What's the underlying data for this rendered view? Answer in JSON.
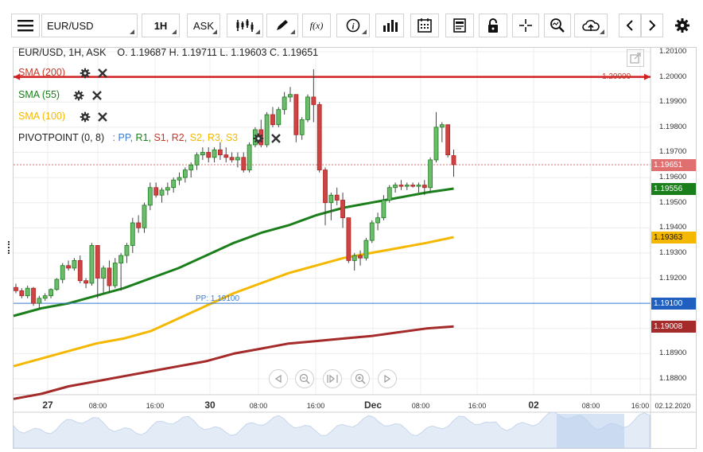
{
  "toolbar": {
    "menu_icon": "hamburger-icon",
    "symbol": "EUR/USD",
    "timeframe": "1H",
    "price_type": "ASK",
    "fx_label": "f(x)"
  },
  "header": {
    "title": "EUR/USD, 1H, ASK",
    "ohlc": "O. 1.19687 H. 1.19711 L. 1.19603 C. 1.19651"
  },
  "indicators": [
    {
      "label": "SMA (200)",
      "color": "#c0392b"
    },
    {
      "label": "SMA (55)",
      "color": "#1a7f1a"
    },
    {
      "label": "SMA (100)",
      "color": "#f5b800"
    }
  ],
  "pivot": {
    "label": "PIVOTPOINT (0, 8)",
    "sep": ":",
    "parts": [
      {
        "text": "PP,",
        "color": "#3a7bd5"
      },
      {
        "text": "R1,",
        "color": "#1a7f1a"
      },
      {
        "text": "S1,",
        "color": "#c0392b"
      },
      {
        "text": "R2,",
        "color": "#c0392b"
      },
      {
        "text": "S2,",
        "color": "#f5b800"
      },
      {
        "text": "R3,",
        "color": "#f5b800"
      },
      {
        "text": "S3",
        "color": "#f5b800"
      }
    ],
    "pp_label": "PP: 1.19100"
  },
  "price_axis": {
    "labels": [
      "1.20100",
      "1.20000",
      "1.19900",
      "1.19800",
      "1.19700",
      "1.19600",
      "1.19500",
      "1.19400",
      "1.19300",
      "1.19200",
      "1.19100",
      "1.19000",
      "1.18900",
      "1.18800"
    ],
    "hline_label": "1.20000"
  },
  "tags": [
    {
      "text": "1.19651",
      "color": "#e07070"
    },
    {
      "text": "1.19556",
      "color": "#1a7f1a"
    },
    {
      "text": "1.19363",
      "color": "#f5b800",
      "text_color": "#111"
    },
    {
      "text": "1.19100",
      "color": "#1f5fbf"
    },
    {
      "text": "1.19008",
      "color": "#a52a2a"
    }
  ],
  "time_axis": {
    "labels": [
      {
        "t": "27",
        "bold": true
      },
      {
        "t": "08:00"
      },
      {
        "t": "16:00"
      },
      {
        "t": "30",
        "bold": true
      },
      {
        "t": "08:00"
      },
      {
        "t": "16:00"
      },
      {
        "t": "Dec",
        "bold": true
      },
      {
        "t": "08:00"
      },
      {
        "t": "16:00"
      },
      {
        "t": "02",
        "bold": true
      },
      {
        "t": "08:00"
      },
      {
        "t": "16:00"
      },
      {
        "t": "02.12.2020"
      }
    ]
  },
  "chart_data": {
    "type": "candlestick",
    "symbol": "EUR/USD",
    "interval": "1H",
    "ylim": [
      1.1875,
      1.2013
    ],
    "candles": [
      [
        1.19163,
        1.19178,
        1.1914,
        1.1915
      ],
      [
        1.1915,
        1.1916,
        1.1912,
        1.1913
      ],
      [
        1.1913,
        1.1917,
        1.1912,
        1.1916
      ],
      [
        1.1916,
        1.19165,
        1.1909,
        1.191
      ],
      [
        1.191,
        1.1913,
        1.1908,
        1.1912
      ],
      [
        1.1912,
        1.1914,
        1.1911,
        1.1913
      ],
      [
        1.1913,
        1.1916,
        1.1912,
        1.19155
      ],
      [
        1.19155,
        1.192,
        1.1915,
        1.19195
      ],
      [
        1.19195,
        1.1926,
        1.1918,
        1.1925
      ],
      [
        1.1925,
        1.1927,
        1.1923,
        1.1924
      ],
      [
        1.1924,
        1.1928,
        1.1923,
        1.1927
      ],
      [
        1.1927,
        1.1929,
        1.1918,
        1.1919
      ],
      [
        1.1919,
        1.192,
        1.1916,
        1.1918
      ],
      [
        1.1918,
        1.1934,
        1.1917,
        1.1933
      ],
      [
        1.1933,
        1.1932,
        1.1912,
        1.192
      ],
      [
        1.192,
        1.1925,
        1.1914,
        1.1924
      ],
      [
        1.1924,
        1.1927,
        1.1914,
        1.1917
      ],
      [
        1.1917,
        1.1928,
        1.1916,
        1.1926
      ],
      [
        1.1926,
        1.193,
        1.1915,
        1.1929
      ],
      [
        1.1929,
        1.1934,
        1.1926,
        1.1933
      ],
      [
        1.1933,
        1.1944,
        1.193,
        1.1942
      ],
      [
        1.1942,
        1.1945,
        1.1938,
        1.194
      ],
      [
        1.194,
        1.195,
        1.1938,
        1.1949
      ],
      [
        1.1949,
        1.1958,
        1.1947,
        1.1956
      ],
      [
        1.1956,
        1.1958,
        1.1952,
        1.1953
      ],
      [
        1.1953,
        1.1956,
        1.195,
        1.1955
      ],
      [
        1.1955,
        1.1958,
        1.1953,
        1.1956
      ],
      [
        1.1956,
        1.196,
        1.1954,
        1.1959
      ],
      [
        1.1959,
        1.1962,
        1.1957,
        1.196
      ],
      [
        1.196,
        1.1964,
        1.1958,
        1.1963
      ],
      [
        1.1963,
        1.1966,
        1.196,
        1.1965
      ],
      [
        1.1965,
        1.197,
        1.1963,
        1.1969
      ],
      [
        1.1969,
        1.1972,
        1.1967,
        1.197
      ],
      [
        1.197,
        1.1972,
        1.1966,
        1.1968
      ],
      [
        1.1968,
        1.1972,
        1.1966,
        1.1971
      ],
      [
        1.1971,
        1.1974,
        1.1967,
        1.1969
      ],
      [
        1.1969,
        1.1972,
        1.1966,
        1.1968
      ],
      [
        1.1968,
        1.197,
        1.1966,
        1.1967
      ],
      [
        1.1967,
        1.197,
        1.1964,
        1.1968
      ],
      [
        1.1968,
        1.197,
        1.1962,
        1.1963
      ],
      [
        1.1963,
        1.1974,
        1.1962,
        1.1973
      ],
      [
        1.1973,
        1.198,
        1.1972,
        1.1979
      ],
      [
        1.1979,
        1.1983,
        1.1972,
        1.1973
      ],
      [
        1.1973,
        1.1986,
        1.1972,
        1.1985
      ],
      [
        1.1985,
        1.1988,
        1.198,
        1.1981
      ],
      [
        1.1981,
        1.1988,
        1.198,
        1.1987
      ],
      [
        1.1987,
        1.1994,
        1.1985,
        1.1992
      ],
      [
        1.1992,
        1.1996,
        1.199,
        1.1993
      ],
      [
        1.1993,
        1.1992,
        1.1974,
        1.1977
      ],
      [
        1.1977,
        1.1984,
        1.1975,
        1.1983
      ],
      [
        1.1983,
        1.1993,
        1.1982,
        1.1992
      ],
      [
        1.1992,
        1.2003,
        1.1982,
        1.1989
      ],
      [
        1.1989,
        1.199,
        1.1962,
        1.1963
      ],
      [
        1.1963,
        1.1964,
        1.1941,
        1.195
      ],
      [
        1.195,
        1.1954,
        1.1943,
        1.1953
      ],
      [
        1.1953,
        1.1956,
        1.1949,
        1.1951
      ],
      [
        1.1951,
        1.1954,
        1.194,
        1.1944
      ],
      [
        1.1944,
        1.1944,
        1.1926,
        1.1927
      ],
      [
        1.1927,
        1.193,
        1.1923,
        1.1929
      ],
      [
        1.1929,
        1.1931,
        1.1925,
        1.1928
      ],
      [
        1.1928,
        1.1936,
        1.1927,
        1.1935
      ],
      [
        1.1935,
        1.1943,
        1.1934,
        1.1942
      ],
      [
        1.1942,
        1.1946,
        1.1939,
        1.1944
      ],
      [
        1.1944,
        1.1953,
        1.1943,
        1.1951
      ],
      [
        1.1951,
        1.1957,
        1.195,
        1.1956
      ],
      [
        1.1956,
        1.1958,
        1.1954,
        1.1957
      ],
      [
        1.1957,
        1.1959,
        1.1955,
        1.19565
      ],
      [
        1.19565,
        1.1958,
        1.1955,
        1.1957
      ],
      [
        1.1957,
        1.1958,
        1.1956,
        1.19565
      ],
      [
        1.19565,
        1.1958,
        1.1954,
        1.1957
      ],
      [
        1.1957,
        1.1959,
        1.1953,
        1.1956
      ],
      [
        1.1956,
        1.1968,
        1.1954,
        1.1967
      ],
      [
        1.1967,
        1.1986,
        1.1966,
        1.198
      ],
      [
        1.198,
        1.1982,
        1.1974,
        1.1981
      ],
      [
        1.1981,
        1.1981,
        1.1968,
        1.1969
      ],
      [
        1.19687,
        1.19711,
        1.19603,
        1.19651
      ]
    ],
    "sma55": [
      1.1905,
      1.1908,
      1.191,
      1.1913,
      1.1916,
      1.192,
      1.1924,
      1.1929,
      1.1934,
      1.1938,
      1.1941,
      1.1945,
      1.1948,
      1.195,
      1.1952,
      1.1954,
      1.19556
    ],
    "sma100": [
      1.1885,
      1.1888,
      1.1891,
      1.1894,
      1.1896,
      1.1899,
      1.1904,
      1.1909,
      1.1914,
      1.1918,
      1.1922,
      1.1925,
      1.1928,
      1.193,
      1.1932,
      1.1934,
      1.19363
    ],
    "sma200": [
      1.1872,
      1.1874,
      1.1877,
      1.1879,
      1.1881,
      1.1883,
      1.1885,
      1.1887,
      1.189,
      1.1892,
      1.1894,
      1.1895,
      1.1896,
      1.1897,
      1.18985,
      1.19,
      1.19008
    ],
    "levels": {
      "hline": 1.2,
      "pp": 1.191,
      "last": 1.19651
    }
  }
}
